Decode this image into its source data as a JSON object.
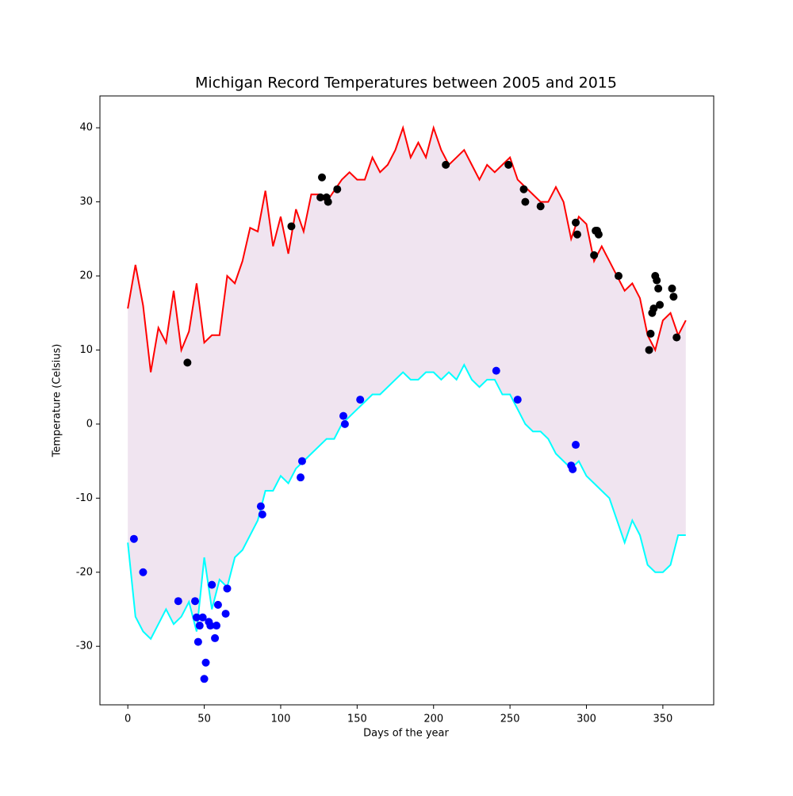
{
  "chart_data": {
    "type": "line",
    "title": "Michigan Record Temperatures between 2005 and 2015",
    "xlabel": "Days of the year",
    "ylabel": "Temperature (Celsius)",
    "xlim": [
      -18.25,
      383.25
    ],
    "ylim": [
      -37.9,
      44.3
    ],
    "xticks": [
      0,
      50,
      100,
      150,
      200,
      250,
      300,
      350
    ],
    "yticks": [
      -30,
      -20,
      -10,
      0,
      10,
      20,
      30,
      40
    ],
    "fill_between": true,
    "fill_color": "#f0e4f0",
    "x": [
      0,
      5,
      10,
      15,
      20,
      25,
      30,
      35,
      40,
      45,
      50,
      55,
      60,
      65,
      70,
      75,
      80,
      85,
      90,
      95,
      100,
      105,
      110,
      115,
      120,
      125,
      130,
      135,
      140,
      145,
      150,
      155,
      160,
      165,
      170,
      175,
      180,
      185,
      190,
      195,
      200,
      205,
      210,
      215,
      220,
      225,
      230,
      235,
      240,
      245,
      250,
      255,
      260,
      265,
      270,
      275,
      280,
      285,
      290,
      295,
      300,
      305,
      310,
      315,
      320,
      325,
      330,
      335,
      340,
      345,
      350,
      355,
      360,
      365
    ],
    "series": [
      {
        "type": "line",
        "color": "#ff0000",
        "values": [
          15.6,
          21.5,
          16,
          7,
          13,
          11,
          18,
          10,
          12.5,
          19,
          11,
          12,
          12,
          20,
          19,
          22,
          26.5,
          26,
          31.5,
          24,
          28,
          23,
          29,
          26,
          31,
          31,
          30,
          31.5,
          33,
          34,
          33,
          33,
          36,
          34,
          35,
          37,
          40,
          36,
          38,
          36,
          40,
          37,
          35,
          36,
          37,
          35,
          33,
          35,
          34,
          35,
          36,
          33,
          32,
          31,
          30,
          30,
          32,
          30,
          25,
          28,
          27,
          22,
          24,
          22,
          20,
          18,
          19,
          17,
          12,
          10,
          14,
          15,
          12,
          14
        ]
      },
      {
        "type": "line",
        "color": "#00ffff",
        "values": [
          -16,
          -26,
          -28,
          -29,
          -27,
          -25,
          -27,
          -26,
          -24,
          -28,
          -18,
          -25,
          -21,
          -22,
          -18,
          -17,
          -15,
          -13,
          -9,
          -9,
          -7,
          -8,
          -6,
          -5,
          -4,
          -3,
          -2,
          -2,
          0,
          1,
          2,
          3,
          4,
          4,
          5,
          6,
          7,
          6,
          6,
          7,
          7,
          6,
          7,
          6,
          8,
          6,
          5,
          6,
          6,
          4,
          4,
          2,
          0,
          -1,
          -1,
          -2,
          -4,
          -5,
          -6,
          -5,
          -7,
          -8,
          -9,
          -10,
          -13,
          -16,
          -13,
          -15,
          -19,
          -20,
          -20,
          -19,
          -15,
          -15
        ]
      },
      {
        "type": "scatter",
        "color": "#000000",
        "x": [
          39,
          107,
          126,
          127,
          130,
          131,
          137,
          208,
          249,
          259,
          260,
          270,
          293,
          294,
          305,
          306,
          307,
          308,
          321,
          341,
          342,
          343,
          344,
          345,
          346,
          347,
          348,
          356,
          357,
          359
        ],
        "values": [
          8.3,
          26.7,
          30.6,
          33.3,
          30.6,
          30,
          31.7,
          35,
          35,
          31.7,
          30,
          29.4,
          27.2,
          25.6,
          22.8,
          26.1,
          26.1,
          25.6,
          20,
          10,
          12.2,
          15,
          15.6,
          20,
          19.4,
          18.3,
          16.1,
          18.3,
          17.2,
          11.7
        ]
      },
      {
        "type": "scatter",
        "color": "#0000ff",
        "x": [
          4,
          10,
          33,
          44,
          45,
          46,
          47,
          49,
          50,
          51,
          53,
          54,
          55,
          57,
          58,
          59,
          64,
          65,
          87,
          88,
          113,
          114,
          141,
          142,
          152,
          241,
          255,
          290,
          291,
          293
        ],
        "values": [
          -15.5,
          -20,
          -23.9,
          -23.9,
          -26.1,
          -29.4,
          -27.2,
          -26.1,
          -34.4,
          -32.2,
          -26.7,
          -27.2,
          -21.7,
          -28.9,
          -27.2,
          -24.4,
          -25.6,
          -22.2,
          -11.1,
          -12.2,
          -7.2,
          -5,
          1.1,
          0,
          3.3,
          7.2,
          3.3,
          -5.6,
          -6.1,
          -2.8
        ]
      }
    ]
  }
}
